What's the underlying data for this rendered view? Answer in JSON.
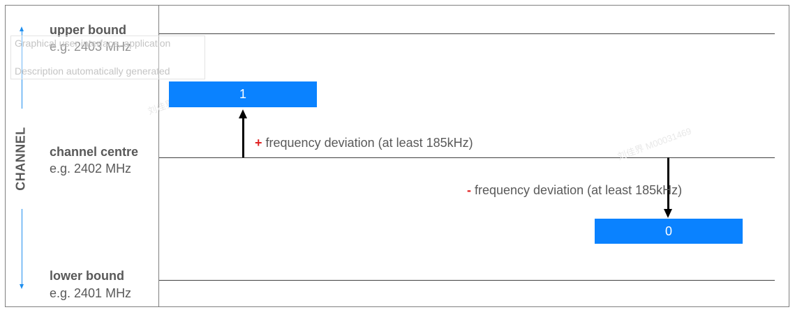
{
  "left_panel": {
    "axis_label": "CHANNEL",
    "upper": {
      "title": "upper bound",
      "example": "e.g. 2403 MHz"
    },
    "centre": {
      "title": "channel centre",
      "example": "e.g. 2402 MHz"
    },
    "lower": {
      "title": "lower bound",
      "example": "e.g. 2401 MHz"
    }
  },
  "alt_text": {
    "line1": "Graphical user interface, application",
    "line2": "Description automatically generated"
  },
  "bits": {
    "one": "1",
    "zero": "0"
  },
  "deviation": {
    "plus_sign": "+",
    "minus_sign": "-",
    "text": " frequency deviation (at least 185kHz)"
  },
  "watermark": "刘佳界 M00031469",
  "colors": {
    "bit_fill": "#0a82ff",
    "axis_arrow": "#1f8fef",
    "sign": "#e02020"
  }
}
